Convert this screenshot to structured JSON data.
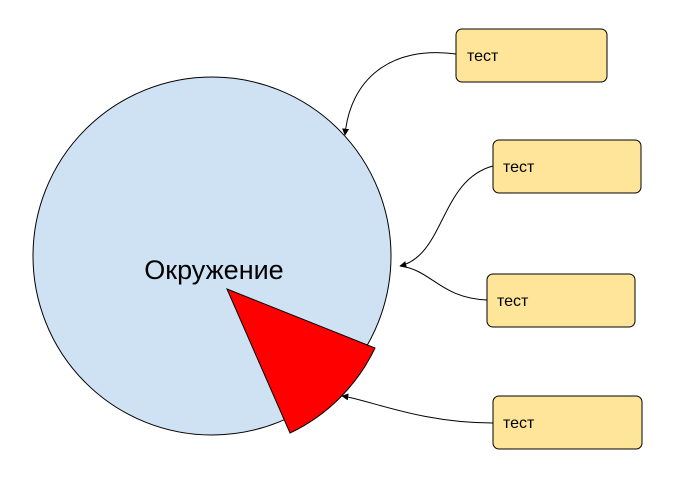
{
  "circle": {
    "label": "Окружение",
    "fill_color": "#cfe2f3",
    "stroke_color": "#000000"
  },
  "sector": {
    "fill_color": "#ff0000"
  },
  "boxes": [
    {
      "label": "тест"
    },
    {
      "label": "тест"
    },
    {
      "label": "тест"
    },
    {
      "label": "тест"
    }
  ],
  "box_style": {
    "fill_color": "#ffe599",
    "stroke_color": "#000000"
  },
  "connector_color": "#000000"
}
